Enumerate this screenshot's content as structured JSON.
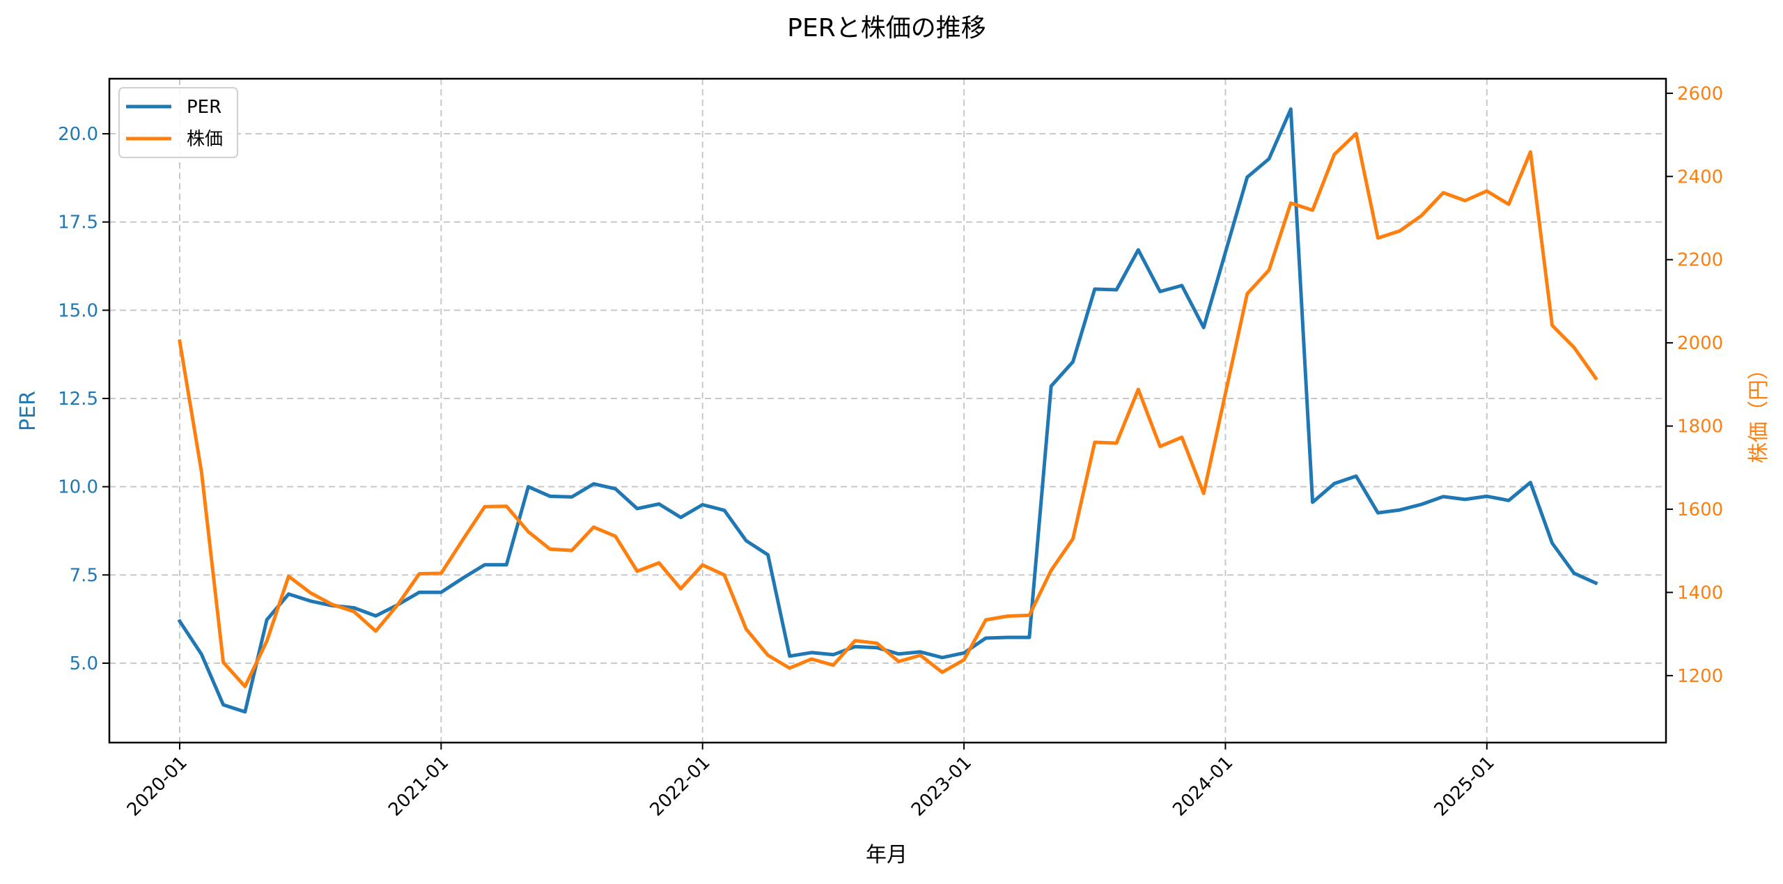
{
  "chart_data": {
    "type": "line",
    "title": "PERと株価の推移",
    "xlabel": "年月",
    "ylabel": "PER",
    "ylabel_right": "株価（円）",
    "x_tick_labels": [
      "2020-01",
      "2021-01",
      "2022-01",
      "2023-01",
      "2024-01",
      "2025-01"
    ],
    "y_ticks_left": [
      "5.0",
      "7.5",
      "10.0",
      "12.5",
      "15.0",
      "17.5",
      "20.0"
    ],
    "y_ticks_right": [
      "1200",
      "1400",
      "1600",
      "1800",
      "2000",
      "2200",
      "2400",
      "2600"
    ],
    "ylim_left": [
      2.75,
      21.56
    ],
    "ylim_right": [
      1039,
      2635
    ],
    "grid": true,
    "grid_style": "dashed",
    "legend_position": "upper left",
    "x_start": "2020-01",
    "x_end": "2025-06",
    "x": [
      "2020-01",
      "2020-02",
      "2020-03",
      "2020-04",
      "2020-05",
      "2020-06",
      "2020-07",
      "2020-08",
      "2020-09",
      "2020-10",
      "2020-11",
      "2020-12",
      "2021-01",
      "2021-02",
      "2021-03",
      "2021-04",
      "2021-05",
      "2021-06",
      "2021-07",
      "2021-08",
      "2021-09",
      "2021-10",
      "2021-11",
      "2021-12",
      "2022-01",
      "2022-02",
      "2022-03",
      "2022-04",
      "2022-05",
      "2022-06",
      "2022-07",
      "2022-08",
      "2022-09",
      "2022-10",
      "2022-11",
      "2022-12",
      "2023-01",
      "2023-02",
      "2023-03",
      "2023-04",
      "2023-05",
      "2023-06",
      "2023-07",
      "2023-08",
      "2023-09",
      "2023-10",
      "2023-11",
      "2023-12",
      "2024-01",
      "2024-02",
      "2024-03",
      "2024-04",
      "2024-05",
      "2024-06",
      "2024-07",
      "2024-08",
      "2024-09",
      "2024-10",
      "2024-11",
      "2024-12",
      "2025-01",
      "2025-02",
      "2025-03",
      "2025-04",
      "2025-05",
      "2025-06"
    ],
    "series": [
      {
        "name": "PER",
        "axis": "left",
        "color": "#1f77b4",
        "values": [
          6.19,
          5.25,
          3.82,
          3.62,
          6.23,
          6.96,
          6.76,
          6.63,
          6.57,
          6.34,
          6.65,
          7.01,
          7.01,
          7.41,
          7.79,
          7.79,
          10.0,
          9.73,
          9.71,
          10.08,
          9.94,
          9.38,
          9.51,
          9.13,
          9.49,
          9.33,
          8.47,
          8.07,
          5.2,
          5.3,
          5.24,
          5.47,
          5.44,
          5.26,
          5.32,
          5.16,
          5.29,
          5.71,
          5.73,
          5.73,
          12.85,
          13.54,
          15.6,
          15.58,
          16.71,
          15.53,
          15.7,
          14.51,
          16.64,
          18.77,
          19.29,
          20.7,
          9.56,
          10.09,
          10.3,
          9.26,
          9.34,
          9.5,
          9.72,
          9.64,
          9.73,
          9.61,
          10.12,
          8.4,
          7.55,
          7.27
        ]
      },
      {
        "name": "株価",
        "axis": "right",
        "color": "#ff7f0e",
        "values": [
          2004,
          1690,
          1232,
          1174,
          1283,
          1439,
          1399,
          1371,
          1354,
          1307,
          1370,
          1445,
          1446,
          1527,
          1606,
          1607,
          1546,
          1504,
          1501,
          1557,
          1535,
          1451,
          1471,
          1409,
          1466,
          1442,
          1312,
          1249,
          1218,
          1240,
          1225,
          1284,
          1278,
          1234,
          1249,
          1208,
          1238,
          1334,
          1343,
          1345,
          1453,
          1529,
          1761,
          1759,
          1888,
          1751,
          1773,
          1638,
          1878,
          2118,
          2175,
          2336,
          2319,
          2453,
          2503,
          2252,
          2269,
          2306,
          2361,
          2342,
          2365,
          2333,
          2459,
          2042,
          1989,
          1915
        ]
      }
    ]
  },
  "legend": {
    "items": [
      {
        "label": "PER",
        "color": "#1f77b4"
      },
      {
        "label": "株価",
        "color": "#ff7f0e"
      }
    ]
  }
}
